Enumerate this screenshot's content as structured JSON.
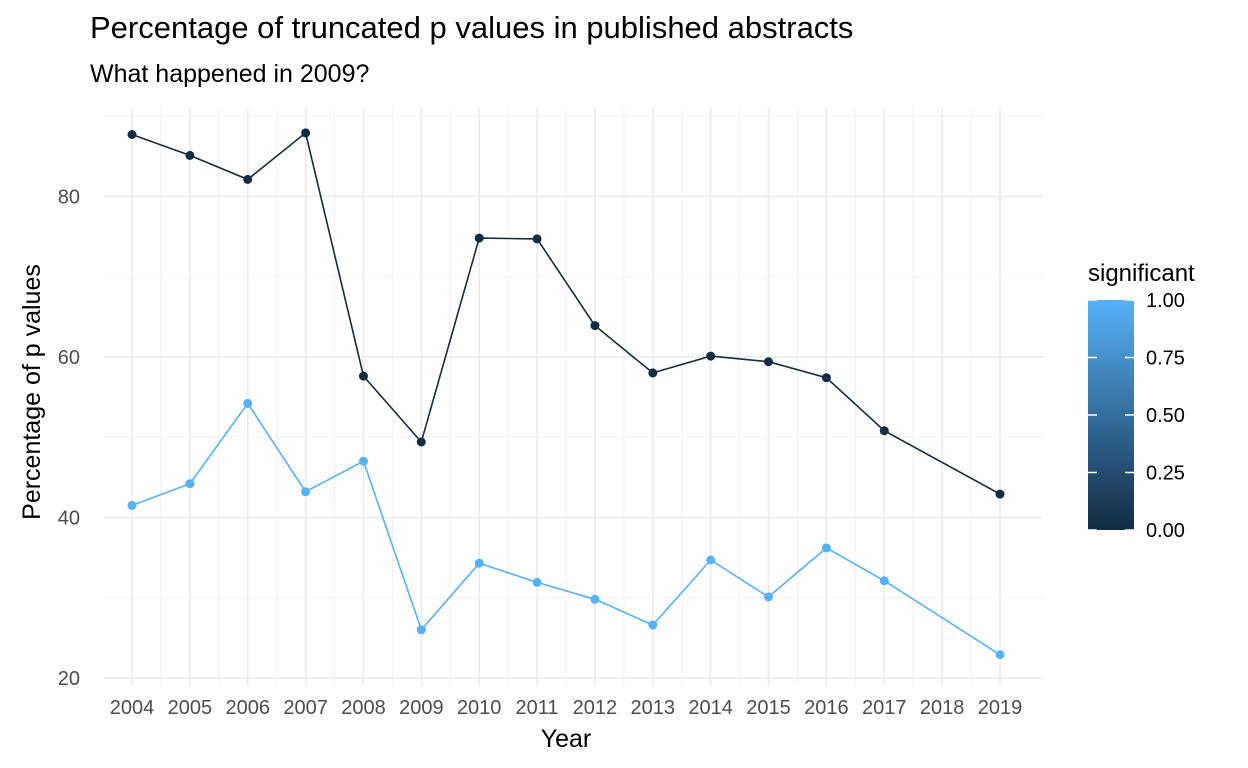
{
  "chart_data": {
    "type": "line",
    "title": "Percentage of truncated p values in published abstracts",
    "subtitle": "What happened in 2009?",
    "xlabel": "Year",
    "ylabel": "Percentage of p values",
    "x": [
      "2004",
      "2005",
      "2006",
      "2007",
      "2008",
      "2009",
      "2010",
      "2011",
      "2012",
      "2013",
      "2014",
      "2015",
      "2016",
      "2017",
      "2018",
      "2019"
    ],
    "ylim": [
      19,
      91
    ],
    "yticks": [
      20,
      40,
      60,
      80
    ],
    "grid": true,
    "series": [
      {
        "significant": 0,
        "color": "#132b43",
        "points": [
          [
            2004,
            87.7
          ],
          [
            2005,
            85.1
          ],
          [
            2006,
            82.1
          ],
          [
            2007,
            87.9
          ],
          [
            2008,
            57.6
          ],
          [
            2009,
            49.4
          ],
          [
            2010,
            74.8
          ],
          [
            2011,
            74.7
          ],
          [
            2012,
            63.9
          ],
          [
            2013,
            58.0
          ],
          [
            2014,
            60.1
          ],
          [
            2015,
            59.4
          ],
          [
            2016,
            57.4
          ],
          [
            2017,
            50.8
          ],
          [
            2019,
            42.9
          ]
        ]
      },
      {
        "significant": 1,
        "color": "#56b1f7",
        "points": [
          [
            2004,
            41.5
          ],
          [
            2005,
            44.2
          ],
          [
            2006,
            54.2
          ],
          [
            2007,
            43.2
          ],
          [
            2008,
            47.0
          ],
          [
            2009,
            26.0
          ],
          [
            2010,
            34.3
          ],
          [
            2011,
            31.9
          ],
          [
            2012,
            29.8
          ],
          [
            2013,
            26.6
          ],
          [
            2014,
            34.7
          ],
          [
            2015,
            30.1
          ],
          [
            2016,
            36.2
          ],
          [
            2017,
            32.1
          ],
          [
            2019,
            22.9
          ]
        ]
      }
    ],
    "legend": {
      "title": "significant",
      "position": "right",
      "gradient": {
        "low": "#132b43",
        "high": "#56b1f7"
      },
      "breaks": [
        {
          "value": 1.0,
          "label": "1.00"
        },
        {
          "value": 0.75,
          "label": "0.75"
        },
        {
          "value": 0.5,
          "label": "0.50"
        },
        {
          "value": 0.25,
          "label": "0.25"
        },
        {
          "value": 0.0,
          "label": "0.00"
        }
      ]
    }
  }
}
